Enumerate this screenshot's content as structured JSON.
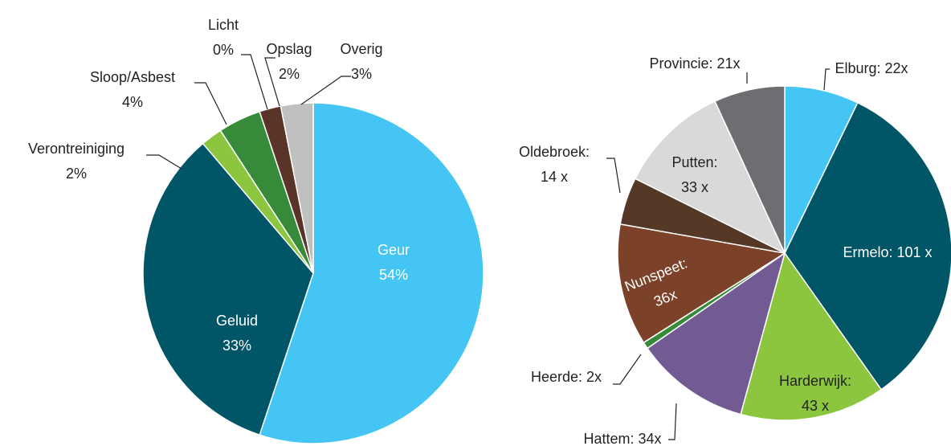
{
  "chart_data": [
    {
      "type": "pie",
      "categories": [
        "Geur",
        "Geluid",
        "Verontreiniging",
        "Sloop/Asbest",
        "Licht",
        "Opslag",
        "Overig"
      ],
      "values": [
        54,
        33,
        2,
        4,
        0,
        2,
        3
      ],
      "value_labels": [
        "54%",
        "33%",
        "2%",
        "4%",
        "0%",
        "2%",
        "3%"
      ],
      "colors": [
        "#44c5f3",
        "#005566",
        "#8cc63f",
        "#378a3a",
        "#8a3b1f",
        "#5a3426",
        "#c0c0c0"
      ]
    },
    {
      "type": "pie",
      "values": [
        22,
        101,
        43,
        34,
        2,
        36,
        14,
        33,
        21
      ],
      "value_labels": [
        [
          "Elburg: 22x"
        ],
        [
          "Ermelo: 101 x"
        ],
        [
          "Harderwijk:",
          "43 x"
        ],
        [
          "Hattem: 34x"
        ],
        [
          "Heerde: 2x"
        ],
        [
          "Nunspeet:",
          "36x"
        ],
        [
          "Oldebroek:",
          "14 x"
        ],
        [
          "Putten:",
          "33 x"
        ],
        [
          "Provincie: 21x"
        ]
      ],
      "colors": [
        "#44c5f3",
        "#005566",
        "#8cc63f",
        "#725a93",
        "#378a3a",
        "#7b4229",
        "#553826",
        "#d9d9d9",
        "#6d6e71"
      ]
    }
  ]
}
